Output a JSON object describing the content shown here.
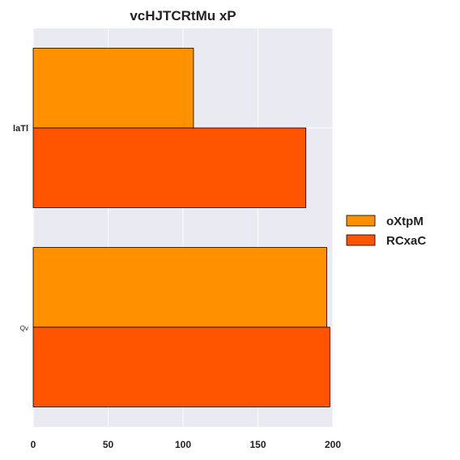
{
  "chart_data": {
    "type": "bar",
    "orientation": "horizontal",
    "title": "vcHJTCRtMu xP",
    "categories": [
      "laTl",
      "Qv"
    ],
    "series": [
      {
        "name": "oXtpM",
        "color": "#ff9000",
        "values": [
          107,
          196
        ]
      },
      {
        "name": "RCxaC",
        "color": "#ff5400",
        "values": [
          182,
          198
        ]
      }
    ],
    "xlim": [
      0,
      200
    ],
    "xticks": [
      0,
      50,
      100,
      150,
      200
    ],
    "xlabel": "",
    "ylabel": "",
    "grid": true,
    "legend_position": "right",
    "plot_background": "#eaeaf2"
  }
}
